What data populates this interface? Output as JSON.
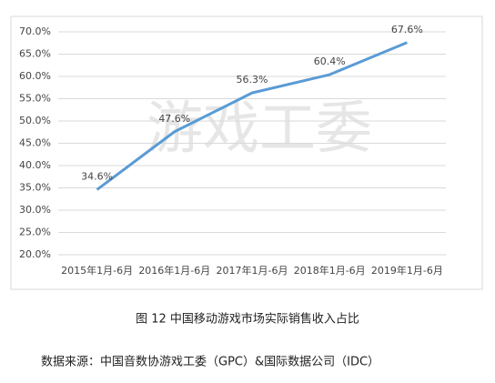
{
  "chart_data": {
    "type": "line",
    "watermark": "游戏工委",
    "categories": [
      "2015年1月-6月",
      "2016年1月-6月",
      "2017年1月-6月",
      "2018年1月-6月",
      "2019年1月-6月"
    ],
    "series": [
      {
        "color": "#5b9bd5",
        "values": [
          34.6,
          47.6,
          56.3,
          60.4,
          67.6
        ],
        "value_labels": [
          "34.6%",
          "47.6%",
          "56.3%",
          "60.4%",
          "67.6%"
        ]
      }
    ],
    "ylim": [
      20,
      70
    ],
    "yticks": [
      {
        "value": 20,
        "label": "20.0%"
      },
      {
        "value": 25,
        "label": "25.0%"
      },
      {
        "value": 30,
        "label": "30.0%"
      },
      {
        "value": 35,
        "label": "35.0%"
      },
      {
        "value": 40,
        "label": "40.0%"
      },
      {
        "value": 45,
        "label": "45.0%"
      },
      {
        "value": 50,
        "label": "50.0%"
      },
      {
        "value": 55,
        "label": "55.0%"
      },
      {
        "value": 60,
        "label": "60.0%"
      },
      {
        "value": 65,
        "label": "65.0%"
      },
      {
        "value": 70,
        "label": "70.0%"
      }
    ],
    "grid": true,
    "caption": "图 12  中国移动游戏市场实际销售收入占比",
    "source": "数据来源：中国音数协游戏工委（GPC）&国际数据公司（IDC）"
  }
}
